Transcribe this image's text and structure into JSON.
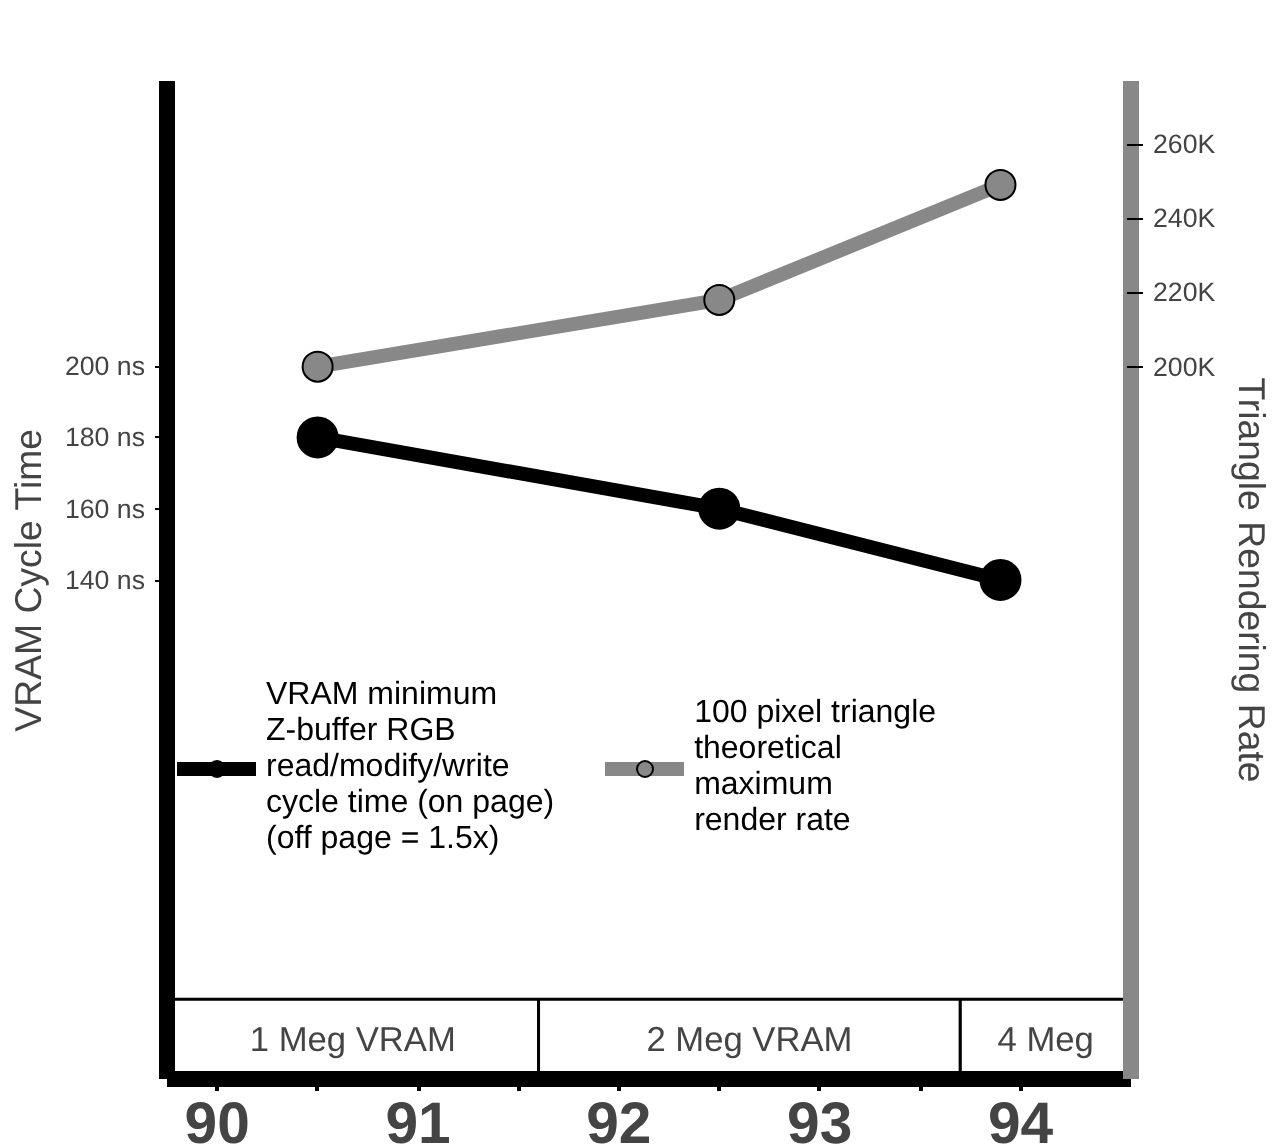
{
  "chart_data": {
    "type": "line",
    "ylabel": "VRAM Cycle Time",
    "y2label": "Triangle Rendering Rate",
    "xlim": [
      89.75,
      94.55
    ],
    "xticks": [
      90,
      {
        "value": 90.5,
        "label": null
      },
      91,
      {
        "value": 91.5,
        "label": null
      },
      92,
      {
        "value": 92.5,
        "label": null
      },
      93,
      {
        "value": 93.5,
        "label": null
      },
      94
    ],
    "ylim": [
      0,
      280
    ],
    "yticks": [
      {
        "value": 140,
        "label": "140 ns"
      },
      {
        "value": 160,
        "label": "160 ns"
      },
      {
        "value": 180,
        "label": "180 ns"
      },
      {
        "value": 200,
        "label": "200 ns"
      }
    ],
    "y2lim": [
      8,
      277
    ],
    "y2ticks": [
      {
        "value": 200,
        "label": "200K"
      },
      {
        "value": 220,
        "label": "220K"
      },
      {
        "value": 240,
        "label": "240K"
      },
      {
        "value": 260,
        "label": "260K"
      }
    ],
    "series": [
      {
        "name": "VRAM minimum\nZ-buffer RGB\nread/modify/write\ncycle time (on page)\n(off page = 1.5x)",
        "color": "#000000",
        "x": [
          90.5,
          92.5,
          93.9
        ],
        "values": [
          180,
          160,
          140
        ]
      },
      {
        "name": "100 pixel triangle\ntheoretical\nmaximum\nrender rate",
        "color": "#888888",
        "axis": "y2",
        "x": [
          90.5,
          92.5,
          93.9
        ],
        "values": [
          200,
          218,
          249
        ]
      }
    ],
    "bands": [
      {
        "axis": "x",
        "from": 89.75,
        "to": 91.6,
        "label": "1 Meg VRAM"
      },
      {
        "axis": "x",
        "from": 91.6,
        "to": 93.7,
        "label": "2 Meg VRAM"
      },
      {
        "axis": "x",
        "from": 93.7,
        "to": 94.55,
        "label": "4 Meg"
      }
    ],
    "marker": "circle",
    "line_style": "solid",
    "grid": false,
    "legend": "bottom"
  }
}
